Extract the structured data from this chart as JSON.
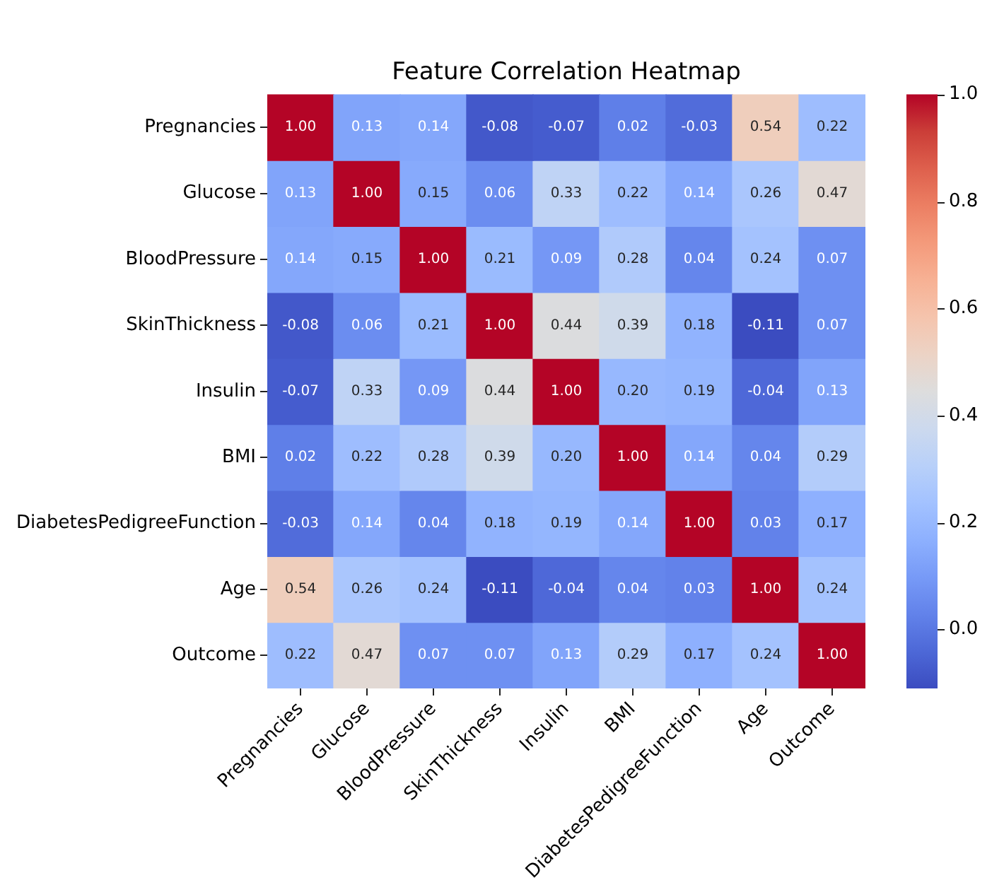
{
  "chart_data": {
    "type": "heatmap",
    "title": "Feature Correlation Heatmap",
    "categories": [
      "Pregnancies",
      "Glucose",
      "BloodPressure",
      "SkinThickness",
      "Insulin",
      "BMI",
      "DiabetesPedigreeFunction",
      "Age",
      "Outcome"
    ],
    "y_categories": [
      "Pregnancies",
      "Glucose",
      "BloodPressure",
      "SkinThickness",
      "Insulin",
      "BMI",
      "DiabetesPedigreeFunction",
      "Age",
      "Outcome"
    ],
    "cells": [
      [
        1,
        0.13,
        0.14,
        -0.08,
        -0.07,
        0.02,
        -0.03,
        0.54,
        0.22
      ],
      [
        0.13,
        1,
        0.15,
        0.06,
        0.33,
        0.22,
        0.14,
        0.26,
        0.47
      ],
      [
        0.14,
        0.15,
        1,
        0.21,
        0.09,
        0.28,
        0.04,
        0.24,
        0.07
      ],
      [
        -0.08,
        0.06,
        0.21,
        1,
        0.44,
        0.39,
        0.18,
        -0.11,
        0.07
      ],
      [
        -0.07,
        0.33,
        0.09,
        0.44,
        1,
        0.2,
        0.19,
        -0.04,
        0.13
      ],
      [
        0.02,
        0.22,
        0.28,
        0.39,
        0.2,
        1,
        0.14,
        0.04,
        0.29
      ],
      [
        -0.03,
        0.14,
        0.04,
        0.18,
        0.19,
        0.14,
        1,
        0.03,
        0.17
      ],
      [
        0.54,
        0.26,
        0.24,
        -0.11,
        -0.04,
        0.04,
        0.03,
        1,
        0.24
      ],
      [
        0.22,
        0.47,
        0.07,
        0.07,
        0.13,
        0.29,
        0.17,
        0.24,
        1
      ]
    ],
    "cell_labels": [
      [
        "1.00",
        "0.13",
        "0.14",
        "-0.08",
        "-0.07",
        "0.02",
        "-0.03",
        "0.54",
        "0.22"
      ],
      [
        "0.13",
        "1.00",
        "0.15",
        "0.06",
        "0.33",
        "0.22",
        "0.14",
        "0.26",
        "0.47"
      ],
      [
        "0.14",
        "0.15",
        "1.00",
        "0.21",
        "0.09",
        "0.28",
        "0.04",
        "0.24",
        "0.07"
      ],
      [
        "-0.08",
        "0.06",
        "0.21",
        "1.00",
        "0.44",
        "0.39",
        "0.18",
        "-0.11",
        "0.07"
      ],
      [
        "-0.07",
        "0.33",
        "0.09",
        "0.44",
        "1.00",
        "0.20",
        "0.19",
        "-0.04",
        "0.13"
      ],
      [
        "0.02",
        "0.22",
        "0.28",
        "0.39",
        "0.20",
        "1.00",
        "0.14",
        "0.04",
        "0.29"
      ],
      [
        "-0.03",
        "0.14",
        "0.04",
        "0.18",
        "0.19",
        "0.14",
        "1.00",
        "0.03",
        "0.17"
      ],
      [
        "0.54",
        "0.26",
        "0.24",
        "-0.11",
        "-0.04",
        "0.04",
        "0.03",
        "1.00",
        "0.24"
      ],
      [
        "0.22",
        "0.47",
        "0.07",
        "0.07",
        "0.13",
        "0.29",
        "0.17",
        "0.24",
        "1.00"
      ]
    ],
    "clim": [
      -0.11,
      1
    ],
    "cticks": [
      {
        "value": 0,
        "label": "0.0"
      },
      0.2,
      0.4,
      0.6,
      0.8,
      {
        "value": 1,
        "label": "1.0"
      }
    ]
  }
}
